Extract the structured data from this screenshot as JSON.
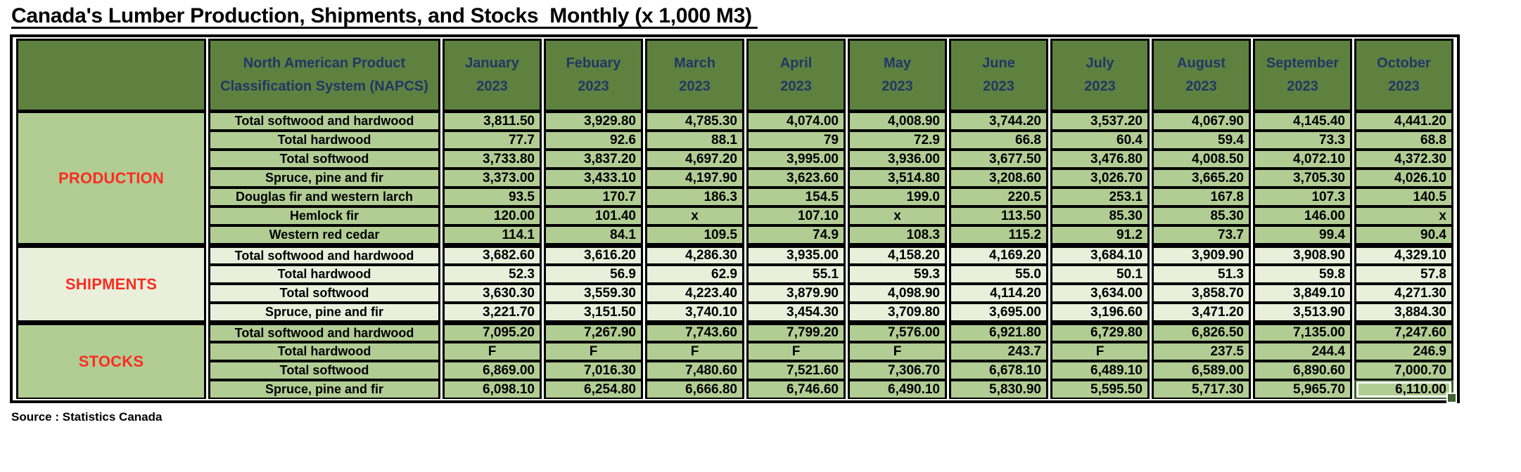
{
  "title": "Canada's Lumber Production, Shipments, and Stocks  Monthly (x 1,000 M3) ",
  "source": "Source : Statistics Canada",
  "colors": {
    "header_green": "#5E8140",
    "cell_green": "#B2CD94",
    "cell_light_green": "#E9EFDB",
    "header_text_navy": "#1F3864",
    "section_label_red": "#FA2D21",
    "selection_green": "#3E612E"
  },
  "table": {
    "napcs_header": "North American Product Classification System (NAPCS)",
    "months": [
      {
        "name": "January",
        "year": "2023"
      },
      {
        "name": "Febuary",
        "year": "2023"
      },
      {
        "name": "March",
        "year": "2023"
      },
      {
        "name": "April",
        "year": "2023"
      },
      {
        "name": "May",
        "year": "2023"
      },
      {
        "name": "June",
        "year": "2023"
      },
      {
        "name": "July",
        "year": "2023"
      },
      {
        "name": "August",
        "year": "2023"
      },
      {
        "name": "September",
        "year": "2023"
      },
      {
        "name": "October",
        "year": "2023"
      }
    ],
    "sections": [
      {
        "label": "PRODUCTION",
        "theme": "green",
        "rows": [
          {
            "label": "Total softwood and hardwood",
            "values": [
              "3,811.50",
              "3,929.80",
              "4,785.30",
              "4,074.00",
              "4,008.90",
              "3,744.20",
              "3,537.20",
              "4,067.90",
              "4,145.40",
              "4,441.20"
            ]
          },
          {
            "label": "Total hardwood",
            "values": [
              "77.7",
              "92.6",
              "88.1",
              "79",
              "72.9",
              "66.8",
              "60.4",
              "59.4",
              "73.3",
              "68.8"
            ]
          },
          {
            "label": "Total softwood",
            "values": [
              "3,733.80",
              "3,837.20",
              "4,697.20",
              "3,995.00",
              "3,936.00",
              "3,677.50",
              "3,476.80",
              "4,008.50",
              "4,072.10",
              "4,372.30"
            ]
          },
          {
            "label": "Spruce, pine and fir",
            "values": [
              "3,373.00",
              "3,433.10",
              "4,197.90",
              "3,623.60",
              "3,514.80",
              "3,208.60",
              "3,026.70",
              "3,665.20",
              "3,705.30",
              "4,026.10"
            ]
          },
          {
            "label": "Douglas fir and western larch",
            "values": [
              "93.5",
              "170.7",
              "186.3",
              "154.5",
              "199.0",
              "220.5",
              "253.1",
              "167.8",
              "107.3",
              "140.5"
            ]
          },
          {
            "label": "Hemlock fir",
            "values": [
              "120.00",
              "101.40",
              "x",
              "107.10",
              "x",
              "113.50",
              "85.30",
              "85.30",
              "146.00",
              "x"
            ]
          },
          {
            "label": "Western red cedar",
            "values": [
              "114.1",
              "84.1",
              "109.5",
              "74.9",
              "108.3",
              "115.2",
              "91.2",
              "73.7",
              "99.4",
              "90.4"
            ]
          }
        ]
      },
      {
        "label": "SHIPMENTS",
        "theme": "light",
        "rows": [
          {
            "label": "Total softwood and hardwood",
            "values": [
              "3,682.60",
              "3,616.20",
              "4,286.30",
              "3,935.00",
              "4,158.20",
              "4,169.20",
              "3,684.10",
              "3,909.90",
              "3,908.90",
              "4,329.10"
            ]
          },
          {
            "label": "Total hardwood",
            "values": [
              "52.3",
              "56.9",
              "62.9",
              "55.1",
              "59.3",
              "55.0",
              "50.1",
              "51.3",
              "59.8",
              "57.8"
            ]
          },
          {
            "label": "Total softwood",
            "values": [
              "3,630.30",
              "3,559.30",
              "4,223.40",
              "3,879.90",
              "4,098.90",
              "4,114.20",
              "3,634.00",
              "3,858.70",
              "3,849.10",
              "4,271.30"
            ]
          },
          {
            "label": "Spruce, pine and fir",
            "values": [
              "3,221.70",
              "3,151.50",
              "3,740.10",
              "3,454.30",
              "3,709.80",
              "3,695.00",
              "3,196.60",
              "3,471.20",
              "3,513.90",
              "3,884.30"
            ]
          }
        ]
      },
      {
        "label": "STOCKS",
        "theme": "green",
        "rows": [
          {
            "label": "Total softwood and hardwood",
            "values": [
              "7,095.20",
              "7,267.90",
              "7,743.60",
              "7,799.20",
              "7,576.00",
              "6,921.80",
              "6,729.80",
              "6,826.50",
              "7,135.00",
              "7,247.60"
            ]
          },
          {
            "label": "Total hardwood",
            "values": [
              "F",
              "F",
              "F",
              "F",
              "F",
              "243.7",
              "F",
              "237.5",
              "244.4",
              "246.9"
            ]
          },
          {
            "label": "Total softwood",
            "values": [
              "6,869.00",
              "7,016.30",
              "7,480.60",
              "7,521.60",
              "7,306.70",
              "6,678.10",
              "6,489.10",
              "6,589.00",
              "6,890.60",
              "7,000.70"
            ]
          },
          {
            "label": "Spruce, pine and fir",
            "values": [
              "6,098.10",
              "6,254.80",
              "6,666.80",
              "6,746.60",
              "6,490.10",
              "5,830.90",
              "5,595.50",
              "5,717.30",
              "5,965.70",
              "6,110.00"
            ]
          }
        ]
      }
    ],
    "selection": {
      "section_index": 2,
      "row_index": 3,
      "col_index": 9
    }
  }
}
